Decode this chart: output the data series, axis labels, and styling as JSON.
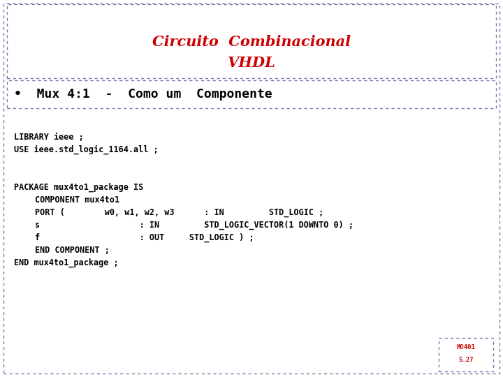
{
  "title_line1": "Circuito  Combinacional",
  "title_line2": "VHDL",
  "title_color": "#cc0000",
  "bullet_text": "•  Mux 4:1  -  Como um  Componente",
  "bullet_font_size": 13,
  "title_font_size": 15,
  "code_lines": [
    {
      "text": "LIBRARY ieee ;",
      "indent": 0
    },
    {
      "text": "USE ieee.std_logic_1164.all ;",
      "indent": 0
    },
    {
      "text": "",
      "indent": 0
    },
    {
      "text": "",
      "indent": 0
    },
    {
      "text": "PACKAGE mux4to1_package IS",
      "indent": 0
    },
    {
      "text": "COMPONENT mux4to1",
      "indent": 1
    },
    {
      "text": "PORT (        w0, w1, w2, w3      : IN         STD_LOGIC ;",
      "indent": 1
    },
    {
      "text": "s                    : IN         STD_LOGIC_VECTOR(1 DOWNTO 0) ;",
      "indent": 1
    },
    {
      "text": "f                    : OUT     STD_LOGIC ) ;",
      "indent": 1
    },
    {
      "text": "END COMPONENT ;",
      "indent": 1
    },
    {
      "text": "END mux4to1_package ;",
      "indent": 0
    }
  ],
  "code_font_size": 8.5,
  "watermark": "MO401",
  "watermark2": "5.27",
  "watermark_color": "#cc0000",
  "bg_color": "#ffffff",
  "border_color": "#7777aa"
}
